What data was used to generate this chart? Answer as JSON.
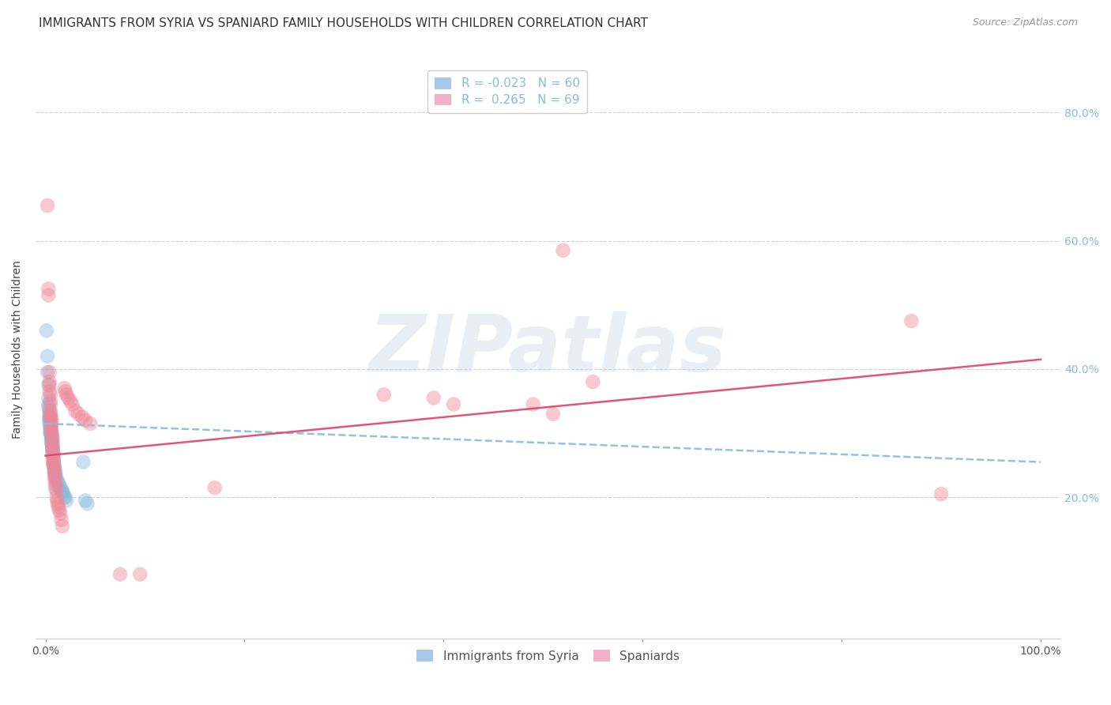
{
  "title": "IMMIGRANTS FROM SYRIA VS SPANIARD FAMILY HOUSEHOLDS WITH CHILDREN CORRELATION CHART",
  "source": "Source: ZipAtlas.com",
  "ylabel": "Family Households with Children",
  "x_tick_positions": [
    0.0,
    0.2,
    0.4,
    0.6,
    0.8,
    1.0
  ],
  "x_tick_labels": [
    "0.0%",
    "",
    "",
    "",
    "",
    "100.0%"
  ],
  "y_tick_positions": [
    0.2,
    0.4,
    0.6,
    0.8
  ],
  "y_tick_labels": [
    "20.0%",
    "40.0%",
    "60.0%",
    "80.0%"
  ],
  "xlim": [
    -0.01,
    1.02
  ],
  "ylim": [
    -0.02,
    0.88
  ],
  "legend_entries": [
    {
      "label_r": "R = -0.023",
      "label_n": "N = 60",
      "color": "#a8c8e8"
    },
    {
      "label_r": "R =  0.265",
      "label_n": "N = 69",
      "color": "#f4b0c8"
    }
  ],
  "grid_color": "#cccccc",
  "blue_scatter_color": "#88bbdd",
  "pink_scatter_color": "#ee8899",
  "blue_line_color": "#88bbdd",
  "pink_line_color": "#dd4466",
  "blue_points": [
    [
      0.001,
      0.46
    ],
    [
      0.002,
      0.42
    ],
    [
      0.002,
      0.395
    ],
    [
      0.003,
      0.375
    ],
    [
      0.003,
      0.355
    ],
    [
      0.003,
      0.345
    ],
    [
      0.003,
      0.34
    ],
    [
      0.004,
      0.335
    ],
    [
      0.004,
      0.33
    ],
    [
      0.004,
      0.325
    ],
    [
      0.004,
      0.325
    ],
    [
      0.004,
      0.32
    ],
    [
      0.004,
      0.32
    ],
    [
      0.004,
      0.315
    ],
    [
      0.005,
      0.315
    ],
    [
      0.005,
      0.31
    ],
    [
      0.005,
      0.31
    ],
    [
      0.005,
      0.31
    ],
    [
      0.005,
      0.305
    ],
    [
      0.005,
      0.305
    ],
    [
      0.005,
      0.3
    ],
    [
      0.005,
      0.3
    ],
    [
      0.005,
      0.3
    ],
    [
      0.006,
      0.3
    ],
    [
      0.006,
      0.295
    ],
    [
      0.006,
      0.295
    ],
    [
      0.006,
      0.29
    ],
    [
      0.006,
      0.29
    ],
    [
      0.006,
      0.285
    ],
    [
      0.006,
      0.285
    ],
    [
      0.007,
      0.28
    ],
    [
      0.007,
      0.28
    ],
    [
      0.007,
      0.275
    ],
    [
      0.007,
      0.275
    ],
    [
      0.007,
      0.27
    ],
    [
      0.007,
      0.265
    ],
    [
      0.007,
      0.265
    ],
    [
      0.008,
      0.26
    ],
    [
      0.008,
      0.255
    ],
    [
      0.008,
      0.25
    ],
    [
      0.009,
      0.25
    ],
    [
      0.009,
      0.245
    ],
    [
      0.009,
      0.24
    ],
    [
      0.01,
      0.24
    ],
    [
      0.01,
      0.235
    ],
    [
      0.01,
      0.23
    ],
    [
      0.011,
      0.23
    ],
    [
      0.012,
      0.225
    ],
    [
      0.013,
      0.22
    ],
    [
      0.014,
      0.22
    ],
    [
      0.015,
      0.215
    ],
    [
      0.016,
      0.21
    ],
    [
      0.017,
      0.21
    ],
    [
      0.018,
      0.205
    ],
    [
      0.019,
      0.2
    ],
    [
      0.02,
      0.2
    ],
    [
      0.021,
      0.195
    ],
    [
      0.038,
      0.255
    ],
    [
      0.04,
      0.195
    ],
    [
      0.042,
      0.19
    ]
  ],
  "pink_points": [
    [
      0.002,
      0.655
    ],
    [
      0.003,
      0.525
    ],
    [
      0.003,
      0.515
    ],
    [
      0.004,
      0.395
    ],
    [
      0.004,
      0.38
    ],
    [
      0.004,
      0.375
    ],
    [
      0.004,
      0.365
    ],
    [
      0.005,
      0.36
    ],
    [
      0.005,
      0.35
    ],
    [
      0.005,
      0.345
    ],
    [
      0.005,
      0.335
    ],
    [
      0.005,
      0.33
    ],
    [
      0.005,
      0.325
    ],
    [
      0.006,
      0.325
    ],
    [
      0.006,
      0.32
    ],
    [
      0.006,
      0.315
    ],
    [
      0.006,
      0.31
    ],
    [
      0.006,
      0.305
    ],
    [
      0.006,
      0.3
    ],
    [
      0.007,
      0.295
    ],
    [
      0.007,
      0.29
    ],
    [
      0.007,
      0.285
    ],
    [
      0.007,
      0.28
    ],
    [
      0.007,
      0.275
    ],
    [
      0.008,
      0.27
    ],
    [
      0.008,
      0.265
    ],
    [
      0.008,
      0.26
    ],
    [
      0.008,
      0.255
    ],
    [
      0.008,
      0.255
    ],
    [
      0.008,
      0.25
    ],
    [
      0.009,
      0.245
    ],
    [
      0.009,
      0.24
    ],
    [
      0.009,
      0.235
    ],
    [
      0.009,
      0.23
    ],
    [
      0.01,
      0.225
    ],
    [
      0.01,
      0.22
    ],
    [
      0.01,
      0.215
    ],
    [
      0.011,
      0.21
    ],
    [
      0.011,
      0.2
    ],
    [
      0.012,
      0.195
    ],
    [
      0.012,
      0.19
    ],
    [
      0.013,
      0.185
    ],
    [
      0.014,
      0.18
    ],
    [
      0.015,
      0.175
    ],
    [
      0.016,
      0.165
    ],
    [
      0.017,
      0.155
    ],
    [
      0.019,
      0.37
    ],
    [
      0.02,
      0.365
    ],
    [
      0.021,
      0.36
    ],
    [
      0.023,
      0.355
    ],
    [
      0.025,
      0.35
    ],
    [
      0.027,
      0.345
    ],
    [
      0.03,
      0.335
    ],
    [
      0.033,
      0.33
    ],
    [
      0.037,
      0.325
    ],
    [
      0.04,
      0.32
    ],
    [
      0.045,
      0.315
    ],
    [
      0.075,
      0.08
    ],
    [
      0.095,
      0.08
    ],
    [
      0.17,
      0.215
    ],
    [
      0.34,
      0.36
    ],
    [
      0.39,
      0.355
    ],
    [
      0.41,
      0.345
    ],
    [
      0.49,
      0.345
    ],
    [
      0.51,
      0.33
    ],
    [
      0.52,
      0.585
    ],
    [
      0.55,
      0.38
    ],
    [
      0.87,
      0.475
    ],
    [
      0.9,
      0.205
    ]
  ],
  "blue_line_x": [
    0.0,
    1.0
  ],
  "blue_line_y_start": 0.315,
  "blue_line_y_end": 0.255,
  "pink_line_x": [
    0.0,
    1.0
  ],
  "pink_line_y_start": 0.265,
  "pink_line_y_end": 0.415,
  "legend_labels_bottom": [
    "Immigrants from Syria",
    "Spaniards"
  ],
  "background_color": "#ffffff",
  "title_fontsize": 11,
  "axis_label_fontsize": 10,
  "tick_fontsize": 10,
  "watermark": "ZIPatlas"
}
